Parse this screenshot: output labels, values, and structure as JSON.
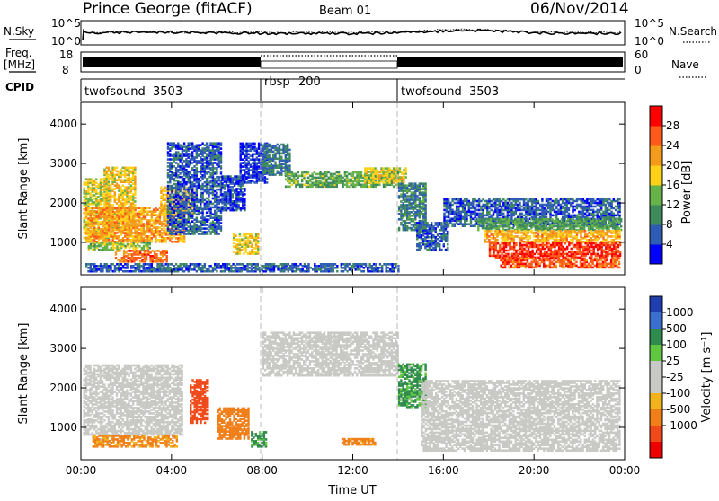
{
  "header": {
    "title": "Prince George (fitACF)",
    "beam": "Beam 01",
    "date": "06/Nov/2014"
  },
  "noise_panel": {
    "left_label": "N.Sky",
    "right_label": "N.Search",
    "left_ticks": [
      "10^5",
      "10^0"
    ],
    "right_ticks": [
      "10^5",
      "10^0"
    ]
  },
  "freq_panel": {
    "left_label_1": "Freq.",
    "left_label_2": "[MHz]",
    "right_label": "Nave",
    "left_ticks": [
      "18",
      "8"
    ],
    "right_ticks": [
      "60",
      "0"
    ]
  },
  "cpid": {
    "label": "CPID",
    "segments": [
      {
        "name": "twofsound",
        "id": "3503"
      },
      {
        "name": "rbsp",
        "id": "200"
      },
      {
        "name": "twofsound",
        "id": "3503"
      }
    ]
  },
  "colors": {
    "power_scale": [
      "#0000ff",
      "#2e5bb3",
      "#3f8a5c",
      "#66b34a",
      "#ffd21a",
      "#f39b1a",
      "#ff5a1a",
      "#ff0000"
    ],
    "velocity_scale": [
      "#1f3fb0",
      "#3a6fd0",
      "#2f8a4e",
      "#5fc642",
      "#c8c8c4",
      "#c8c8c4",
      "#f2b21c",
      "#f07f1a",
      "#f04a1a",
      "#ee0000"
    ],
    "ground_scatter": "#c8c8c4"
  },
  "chart_data": [
    {
      "type": "heatmap",
      "ylabel": "Slant Range [km]",
      "xlabel": "",
      "x_ticks": [
        "00:00",
        "04:00",
        "08:00",
        "12:00",
        "16:00",
        "20:00",
        "00:00"
      ],
      "y_ticks": [
        1000,
        2000,
        3000,
        4000
      ],
      "xlim_hours": [
        0,
        24
      ],
      "ylim": [
        180,
        4550
      ],
      "colorbar": {
        "label": "Power [dB]",
        "ticks": [
          4,
          8,
          12,
          16,
          20,
          24,
          28
        ],
        "range": [
          0,
          32
        ]
      },
      "regions": [
        {
          "t0": 0.1,
          "t1": 1.2,
          "r0": 1100,
          "r1": 2600,
          "p": 17
        },
        {
          "t0": 1.0,
          "t1": 2.4,
          "r0": 1300,
          "r1": 2900,
          "p": 19
        },
        {
          "t0": 0.2,
          "t1": 4.6,
          "r0": 1000,
          "r1": 1900,
          "p": 22
        },
        {
          "t0": 0.3,
          "t1": 3.0,
          "r0": 800,
          "r1": 1000,
          "p": 15
        },
        {
          "t0": 1.5,
          "t1": 3.8,
          "r0": 500,
          "r1": 800,
          "p": 25
        },
        {
          "t0": 3.5,
          "t1": 5.0,
          "r0": 1700,
          "r1": 2400,
          "p": 20
        },
        {
          "t0": 3.8,
          "t1": 6.2,
          "r0": 1200,
          "r1": 3500,
          "p": 6
        },
        {
          "t0": 6.2,
          "t1": 7.2,
          "r0": 1800,
          "r1": 2700,
          "p": 5
        },
        {
          "t0": 6.7,
          "t1": 7.8,
          "r0": 700,
          "r1": 1200,
          "p": 18
        },
        {
          "t0": 7.0,
          "t1": 8.2,
          "r0": 2500,
          "r1": 3500,
          "p": 4
        },
        {
          "t0": 8.0,
          "t1": 9.2,
          "r0": 2700,
          "r1": 3500,
          "p": 8
        },
        {
          "t0": 9.0,
          "t1": 14.0,
          "r0": 2400,
          "r1": 2800,
          "p": 13
        },
        {
          "t0": 12.5,
          "t1": 14.3,
          "r0": 2500,
          "r1": 2900,
          "p": 18
        },
        {
          "t0": 14.0,
          "t1": 15.2,
          "r0": 1300,
          "r1": 2500,
          "p": 9
        },
        {
          "t0": 14.8,
          "t1": 16.2,
          "r0": 800,
          "r1": 1500,
          "p": 6
        },
        {
          "t0": 16.0,
          "t1": 23.8,
          "r0": 1400,
          "r1": 2100,
          "p": 6
        },
        {
          "t0": 17.5,
          "t1": 23.8,
          "r0": 1300,
          "r1": 1600,
          "p": 12
        },
        {
          "t0": 17.8,
          "t1": 23.8,
          "r0": 1000,
          "r1": 1300,
          "p": 21
        },
        {
          "t0": 18.0,
          "t1": 23.8,
          "r0": 600,
          "r1": 1000,
          "p": 28
        },
        {
          "t0": 18.5,
          "t1": 23.8,
          "r0": 350,
          "r1": 600,
          "p": 26
        },
        {
          "t0": 0.2,
          "t1": 14.0,
          "r0": 250,
          "r1": 450,
          "p": 6
        }
      ]
    },
    {
      "type": "heatmap",
      "ylabel": "Slant Range [km]",
      "xlabel": "Time UT",
      "x_ticks": [
        "00:00",
        "04:00",
        "08:00",
        "12:00",
        "16:00",
        "20:00",
        "00:00"
      ],
      "y_ticks": [
        1000,
        2000,
        3000,
        4000
      ],
      "xlim_hours": [
        0,
        24
      ],
      "ylim": [
        180,
        4550
      ],
      "colorbar": {
        "label": "Velocity [m s⁻¹]",
        "ticks": [
          1000,
          500,
          100,
          25,
          -25,
          -100,
          -500,
          -1000
        ]
      },
      "regions": [
        {
          "t0": 0.1,
          "t1": 4.5,
          "r0": 800,
          "r1": 2600,
          "v": 0
        },
        {
          "t0": 0.5,
          "t1": 4.2,
          "r0": 500,
          "r1": 800,
          "v": -150
        },
        {
          "t0": 4.8,
          "t1": 5.6,
          "r0": 1100,
          "r1": 2200,
          "v": -700
        },
        {
          "t0": 6.0,
          "t1": 7.4,
          "r0": 700,
          "r1": 1500,
          "v": -300
        },
        {
          "t0": 7.5,
          "t1": 8.2,
          "r0": 500,
          "r1": 900,
          "v": 150
        },
        {
          "t0": 8.0,
          "t1": 14.0,
          "r0": 2300,
          "r1": 3400,
          "v": 0
        },
        {
          "t0": 14.0,
          "t1": 15.2,
          "r0": 1500,
          "r1": 2600,
          "v": 150
        },
        {
          "t0": 15.0,
          "t1": 23.8,
          "r0": 400,
          "r1": 2200,
          "v": 0
        },
        {
          "t0": 11.5,
          "t1": 13.0,
          "r0": 550,
          "r1": 700,
          "v": -200
        }
      ]
    }
  ]
}
